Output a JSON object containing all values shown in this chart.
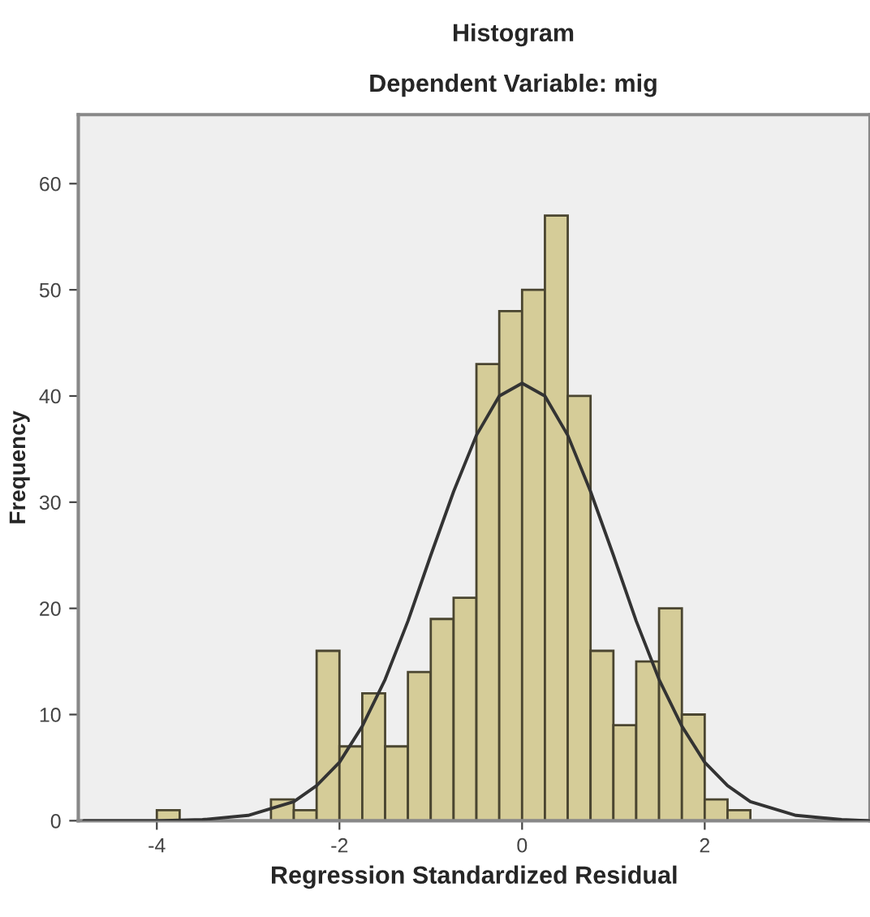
{
  "chart_data": {
    "type": "histogram",
    "title": "Histogram",
    "subtitle": "Dependent Variable: mig",
    "xlabel": "Regression Standardized Residual",
    "ylabel": "Frequency",
    "bins": [
      -4,
      -3.75,
      -3.5,
      -3.25,
      -3,
      -2.75,
      -2.5,
      -2.25,
      -2,
      -1.75,
      -1.5,
      -1.25,
      -1,
      -0.75,
      -0.5,
      -0.25,
      0,
      0.25,
      0.5,
      0.75,
      1,
      1.25,
      1.5,
      1.75,
      2,
      2.25,
      2.5
    ],
    "values": [
      1,
      0,
      0,
      0,
      0,
      2,
      1,
      16,
      7,
      12,
      7,
      14,
      19,
      21,
      43,
      48,
      50,
      57,
      40,
      16,
      9,
      15,
      20,
      10,
      2,
      1
    ],
    "color": "#d5cc98",
    "series": [
      {
        "type": "line",
        "color": "#333333",
        "x": [
          -4.8,
          -4.5,
          -4,
          -3.5,
          -3,
          -2.5,
          -2.25,
          -2,
          -1.75,
          -1.5,
          -1.25,
          -1,
          -0.75,
          -0.5,
          -0.25,
          0,
          0.25,
          0.5,
          0.75,
          1,
          1.25,
          1.5,
          1.75,
          2,
          2.25,
          2.5,
          3,
          3.5,
          3.8
        ],
        "values": [
          0,
          0,
          0,
          0.1,
          0.5,
          1.8,
          3.3,
          5.5,
          8.9,
          13.3,
          18.8,
          25,
          31,
          36.3,
          40,
          41.2,
          40,
          36.3,
          31,
          25,
          18.8,
          13.3,
          8.9,
          5.5,
          3.3,
          1.8,
          0.5,
          0.1,
          0
        ]
      }
    ],
    "xlim": [
      -4.86,
      3.81
    ],
    "ylim": [
      0,
      66.5
    ],
    "xticks": [
      -4,
      -2,
      0,
      2
    ],
    "yticks": [
      0,
      10,
      20,
      30,
      40,
      50,
      60
    ],
    "grid": false,
    "legend": false
  }
}
